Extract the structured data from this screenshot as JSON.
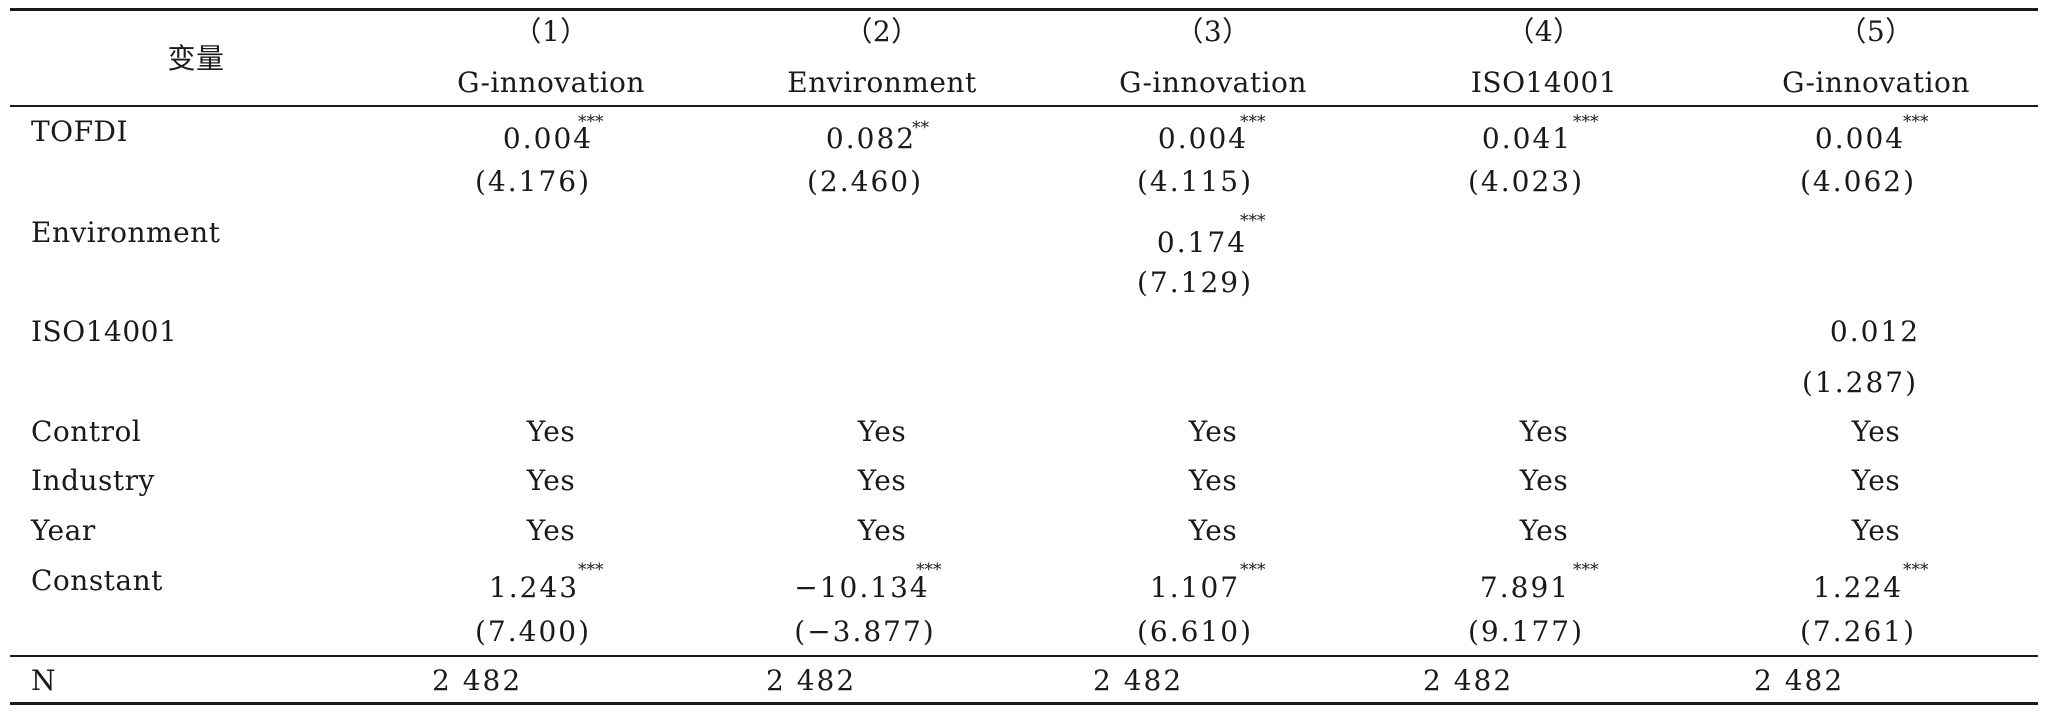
{
  "header": {
    "variable_label": "变量",
    "columns": [
      {
        "number": "（1）",
        "name": "G-innovation"
      },
      {
        "number": "（2）",
        "name": "Environment"
      },
      {
        "number": "（3）",
        "name": "G-innovation"
      },
      {
        "number": "（4）",
        "name": "ISO14001"
      },
      {
        "number": "（5）",
        "name": "G-innovation"
      }
    ]
  },
  "rows": {
    "tofdi": {
      "label": "TOFDI",
      "coef": [
        "0.004",
        "0.082",
        "0.004",
        "0.041",
        "0.004"
      ],
      "stars": [
        "***",
        "**",
        "***",
        "***",
        "***"
      ],
      "t": [
        "(4.176)",
        "(2.460)",
        "(4.115)",
        "(4.023)",
        "(4.062)"
      ]
    },
    "environment": {
      "label": "Environment",
      "coef": "0.174",
      "stars": "***",
      "t": "(7.129)"
    },
    "iso14001": {
      "label": "ISO14001",
      "coef": "0.012",
      "t": "(1.287)"
    },
    "control": {
      "label": "Control",
      "values": [
        "Yes",
        "Yes",
        "Yes",
        "Yes",
        "Yes"
      ]
    },
    "industry": {
      "label": "Industry",
      "values": [
        "Yes",
        "Yes",
        "Yes",
        "Yes",
        "Yes"
      ]
    },
    "year": {
      "label": "Year",
      "values": [
        "Yes",
        "Yes",
        "Yes",
        "Yes",
        "Yes"
      ]
    },
    "constant": {
      "label": "Constant",
      "coef": [
        "1.243",
        "−10.134",
        "1.107",
        "7.891",
        "1.224"
      ],
      "stars": [
        "***",
        "***",
        "***",
        "***",
        "***"
      ],
      "t": [
        "(7.400)",
        "(−3.877)",
        "(6.610)",
        "(9.177)",
        "(7.261)"
      ]
    },
    "n": {
      "label": "N",
      "values": [
        "2 482",
        "2 482",
        "2 482",
        "2 482",
        "2 482"
      ]
    }
  }
}
